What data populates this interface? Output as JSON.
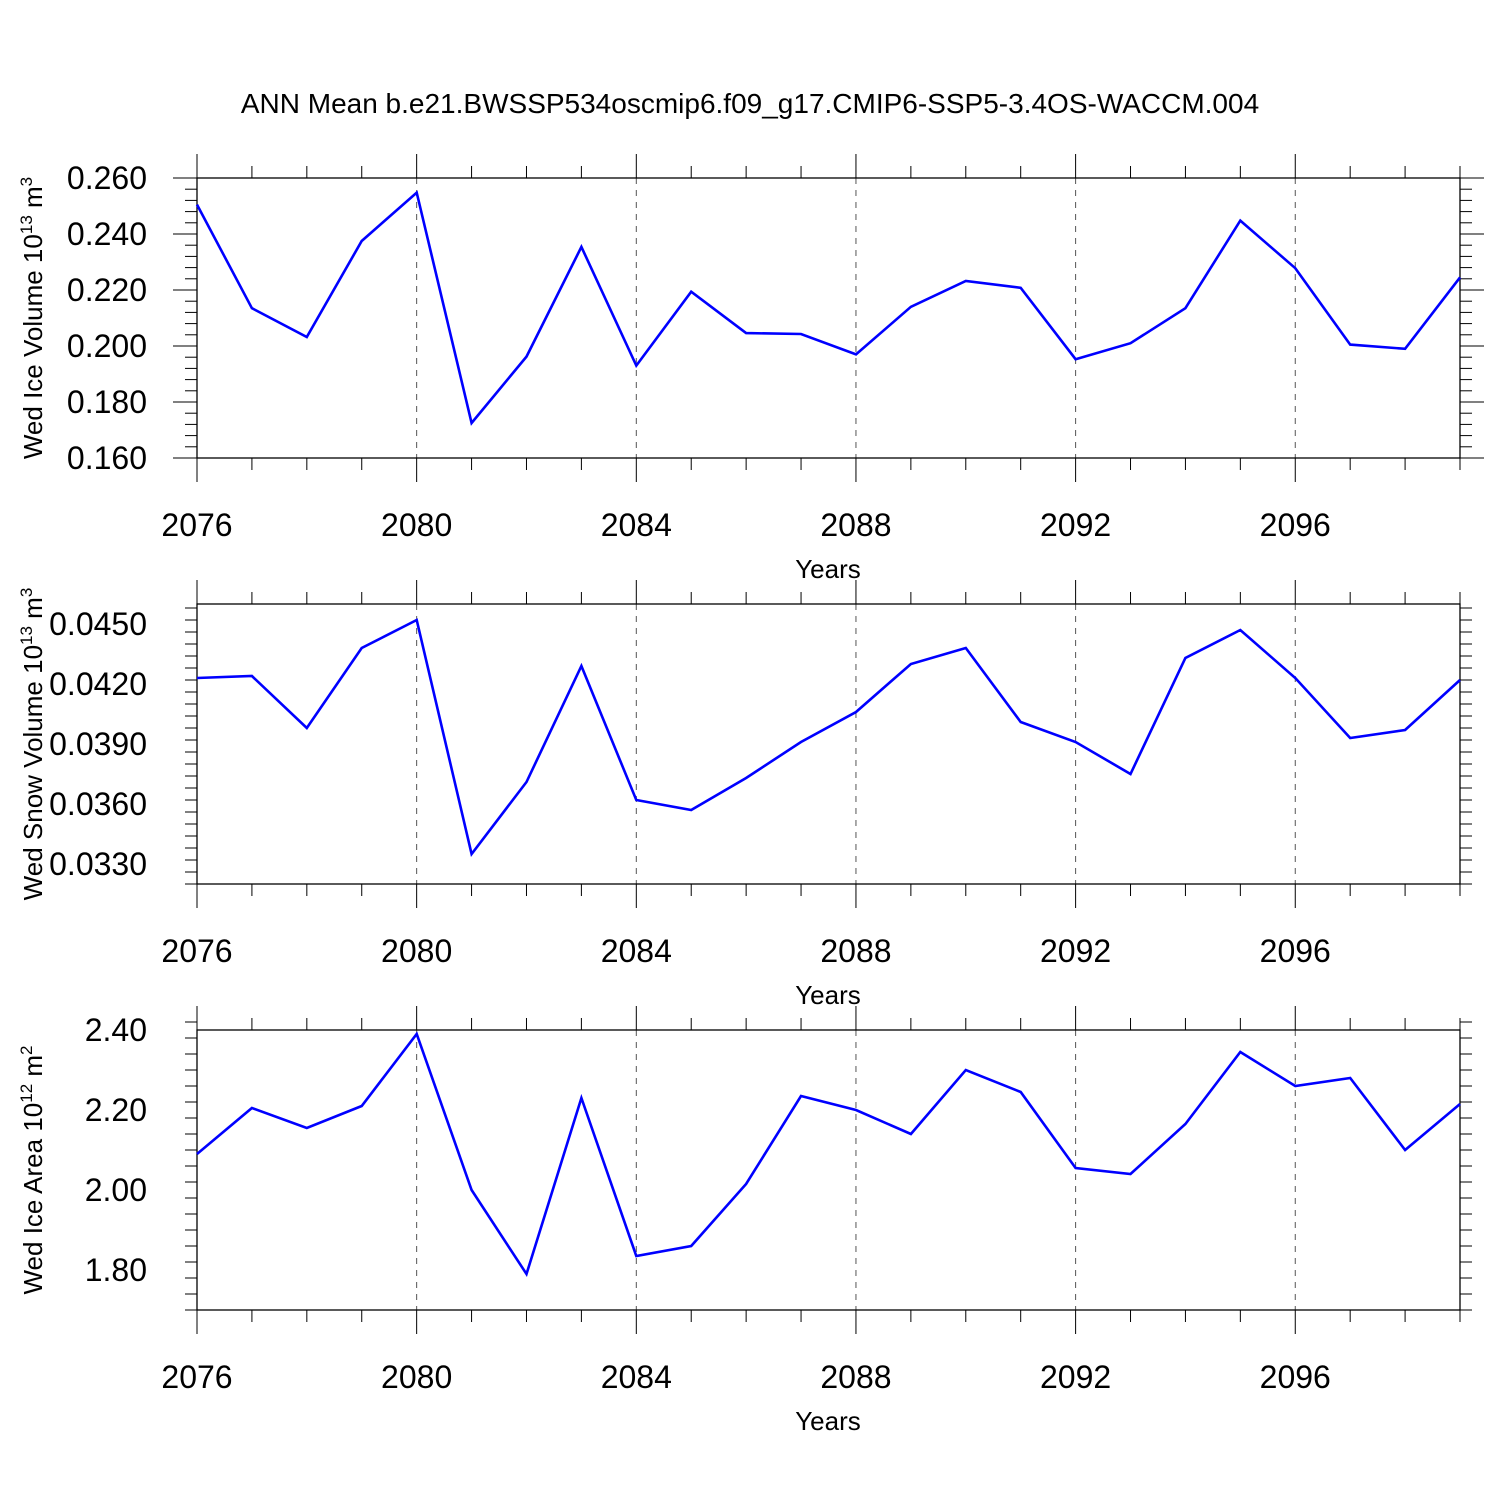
{
  "title": "ANN Mean b.e21.BWSSP534oscmip6.f09_g17.CMIP6-SSP5-3.4OS-WACCM.004",
  "colors": {
    "line": "#0000ff",
    "axis": "#000000",
    "grid": "#555555"
  },
  "chart_data": [
    {
      "type": "line",
      "ylabel": "Wed Ice Volume 10",
      "ylabel_exp": "13",
      "ylabel_unit": " m",
      "ylabel_unit_exp": "3",
      "xlabel": "Years",
      "xlim": [
        2076,
        2099
      ],
      "ylim": [
        0.16,
        0.26
      ],
      "y_ticks": [
        0.16,
        0.18,
        0.2,
        0.22,
        0.24,
        0.26
      ],
      "y_tick_labels": [
        "0.160",
        "0.180",
        "0.200",
        "0.220",
        "0.240",
        "0.260"
      ],
      "x_ticks": [
        2076,
        2080,
        2084,
        2088,
        2092,
        2096
      ],
      "x_tick_labels": [
        "2076",
        "2080",
        "2084",
        "2088",
        "2092",
        "2096"
      ],
      "grid": "vertical dashed at labeled years",
      "x": [
        2076,
        2077,
        2078,
        2079,
        2080,
        2081,
        2082,
        2083,
        2084,
        2085,
        2086,
        2087,
        2088,
        2089,
        2090,
        2091,
        2092,
        2093,
        2094,
        2095,
        2096,
        2097,
        2098,
        2099
      ],
      "values": [
        0.2505,
        0.2135,
        0.2032,
        0.2375,
        0.2548,
        0.1725,
        0.1962,
        0.2354,
        0.193,
        0.2194,
        0.2046,
        0.2043,
        0.197,
        0.214,
        0.2232,
        0.2208,
        0.1953,
        0.201,
        0.2135,
        0.2448,
        0.2278,
        0.2005,
        0.199,
        0.2245
      ]
    },
    {
      "type": "line",
      "ylabel": "Wed Snow Volume 10",
      "ylabel_exp": "13",
      "ylabel_unit": " m",
      "ylabel_unit_exp": "3",
      "xlabel": "Years",
      "xlim": [
        2076,
        2099
      ],
      "ylim": [
        0.032,
        0.046
      ],
      "y_ticks": [
        0.033,
        0.036,
        0.039,
        0.042,
        0.045
      ],
      "y_tick_labels": [
        "0.0330",
        "0.0360",
        "0.0390",
        "0.0420",
        "0.0450"
      ],
      "x_ticks": [
        2076,
        2080,
        2084,
        2088,
        2092,
        2096
      ],
      "x_tick_labels": [
        "2076",
        "2080",
        "2084",
        "2088",
        "2092",
        "2096"
      ],
      "grid": "vertical dashed at labeled years",
      "x": [
        2076,
        2077,
        2078,
        2079,
        2080,
        2081,
        2082,
        2083,
        2084,
        2085,
        2086,
        2087,
        2088,
        2089,
        2090,
        2091,
        2092,
        2093,
        2094,
        2095,
        2096,
        2097,
        2098,
        2099
      ],
      "values": [
        0.0423,
        0.0424,
        0.0398,
        0.0438,
        0.0452,
        0.0335,
        0.0371,
        0.0429,
        0.0362,
        0.0357,
        0.0373,
        0.0391,
        0.0406,
        0.043,
        0.0438,
        0.0401,
        0.0391,
        0.0375,
        0.0433,
        0.0447,
        0.0423,
        0.0393,
        0.0397,
        0.0422
      ]
    },
    {
      "type": "line",
      "ylabel": "Wed Ice Area 10",
      "ylabel_exp": "12",
      "ylabel_unit": " m",
      "ylabel_unit_exp": "2",
      "xlabel": "Years",
      "xlim": [
        2076,
        2099
      ],
      "ylim": [
        1.7,
        2.4
      ],
      "y_ticks": [
        1.8,
        2.0,
        2.2,
        2.4
      ],
      "y_tick_labels": [
        "1.80",
        "2.00",
        "2.20",
        "2.40"
      ],
      "x_ticks": [
        2076,
        2080,
        2084,
        2088,
        2092,
        2096
      ],
      "x_tick_labels": [
        "2076",
        "2080",
        "2084",
        "2088",
        "2092",
        "2096"
      ],
      "grid": "vertical dashed at labeled years",
      "x": [
        2076,
        2077,
        2078,
        2079,
        2080,
        2081,
        2082,
        2083,
        2084,
        2085,
        2086,
        2087,
        2088,
        2089,
        2090,
        2091,
        2092,
        2093,
        2094,
        2095,
        2096,
        2097,
        2098,
        2099
      ],
      "values": [
        2.09,
        2.205,
        2.155,
        2.21,
        2.39,
        2.0,
        1.79,
        2.23,
        1.835,
        1.86,
        2.015,
        2.235,
        2.2,
        2.14,
        2.3,
        2.245,
        2.055,
        2.04,
        2.165,
        2.345,
        2.26,
        2.28,
        2.1,
        2.215
      ]
    }
  ]
}
